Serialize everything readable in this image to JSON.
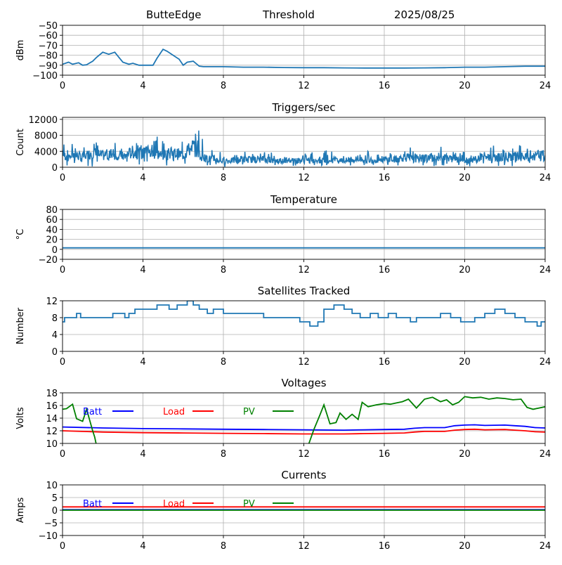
{
  "header": {
    "station": "ButteEdge",
    "trigger": "Threshold",
    "date": "2025/08/25"
  },
  "colors": {
    "series": "#1f77b4",
    "batt": "#0000ff",
    "load": "#ff0000",
    "pv": "#008000",
    "grid": "#b0b0b0"
  },
  "chart_data": [
    {
      "type": "line",
      "title": "",
      "xlabel": "",
      "ylabel": "dBm",
      "xlim": [
        0,
        24
      ],
      "ylim": [
        -100,
        -50
      ],
      "xticks": [
        0,
        4,
        8,
        12,
        16,
        20,
        24
      ],
      "yticks": [
        -50,
        -60,
        -70,
        -80,
        -90,
        -100
      ],
      "grid": true,
      "series": [
        {
          "x": [
            0,
            0.3,
            0.5,
            0.8,
            1.0,
            1.2,
            1.5,
            1.7,
            2.0,
            2.3,
            2.6,
            2.8,
            3.0,
            3.3,
            3.5,
            3.8,
            4.0,
            4.5,
            4.7,
            5.0,
            5.2,
            5.5,
            5.8,
            6.0,
            6.2,
            6.5,
            6.8,
            7.0,
            8,
            9,
            10,
            11,
            12,
            13,
            14,
            15,
            16,
            17,
            18,
            19,
            20,
            21,
            22,
            23,
            24
          ],
          "y": [
            -89,
            -87,
            -89,
            -87.5,
            -90,
            -89.5,
            -86,
            -82,
            -77,
            -79,
            -77,
            -82,
            -87,
            -89,
            -88,
            -90,
            -90,
            -90,
            -83,
            -74,
            -76,
            -80,
            -84,
            -90,
            -87,
            -86,
            -91,
            -91.5,
            -91.5,
            -92,
            -92,
            -92.3,
            -92.5,
            -92.5,
            -92.7,
            -92.8,
            -92.8,
            -92.8,
            -92.7,
            -92.5,
            -92,
            -92,
            -91.5,
            -91,
            -91
          ]
        }
      ]
    },
    {
      "type": "line",
      "title": "Triggers/sec",
      "xlabel": "",
      "ylabel": "Count",
      "xlim": [
        0,
        24
      ],
      "ylim": [
        0,
        12500
      ],
      "xticks": [
        0,
        4,
        8,
        12,
        16,
        20,
        24
      ],
      "yticks": [
        0,
        4000,
        8000,
        12000
      ],
      "grid": true,
      "series": [
        {
          "x": [
            0,
            0.5,
            1,
            1.5,
            2,
            2.5,
            3,
            3.5,
            4,
            4.5,
            5,
            5.5,
            6,
            6.5,
            7,
            7.5,
            8,
            8.5,
            9,
            9.5,
            10,
            10.5,
            11,
            11.5,
            12,
            12.5,
            13,
            13.5,
            14,
            14.5,
            15,
            15.5,
            16,
            16.5,
            17,
            17.5,
            18,
            18.5,
            19,
            19.5,
            20,
            20.5,
            21,
            21.5,
            22,
            22.5,
            23,
            23.5,
            24
          ],
          "y": [
            2800,
            3200,
            2500,
            3600,
            2900,
            3400,
            2700,
            3800,
            3300,
            3600,
            3000,
            3500,
            3100,
            5200,
            2300,
            2000,
            1500,
            1700,
            2000,
            1900,
            2100,
            1600,
            1800,
            1600,
            1700,
            1500,
            1700,
            1800,
            1600,
            1900,
            2100,
            1800,
            2000,
            1900,
            2500,
            2200,
            2300,
            2600,
            2400,
            2100,
            1800,
            2000,
            2700,
            2300,
            2600,
            2800,
            2400,
            2900,
            3000
          ],
          "range": [
            [
              300,
              6000
            ],
            [
              500,
              6200
            ],
            [
              200,
              5000
            ],
            [
              600,
              6500
            ],
            [
              400,
              5500
            ],
            [
              600,
              6800
            ],
            [
              300,
              5200
            ],
            [
              700,
              7600
            ],
            [
              500,
              7000
            ],
            [
              600,
              8400
            ],
            [
              400,
              6000
            ],
            [
              600,
              7000
            ],
            [
              400,
              6500
            ],
            [
              700,
              9800
            ],
            [
              200,
              4800
            ],
            [
              300,
              4200
            ],
            [
              100,
              2800
            ],
            [
              300,
              3200
            ],
            [
              300,
              4000
            ],
            [
              300,
              3500
            ],
            [
              300,
              4200
            ],
            [
              200,
              3000
            ],
            [
              300,
              3500
            ],
            [
              200,
              3200
            ],
            [
              200,
              4000
            ],
            [
              200,
              2800
            ],
            [
              300,
              4500
            ],
            [
              300,
              3500
            ],
            [
              200,
              3400
            ],
            [
              300,
              3800
            ],
            [
              300,
              4500
            ],
            [
              300,
              3500
            ],
            [
              300,
              4500
            ],
            [
              300,
              3600
            ],
            [
              400,
              5200
            ],
            [
              300,
              4200
            ],
            [
              300,
              4500
            ],
            [
              400,
              5200
            ],
            [
              300,
              4800
            ],
            [
              300,
              4000
            ],
            [
              200,
              3500
            ],
            [
              300,
              4000
            ],
            [
              300,
              5500
            ],
            [
              300,
              4600
            ],
            [
              300,
              5200
            ],
            [
              400,
              5600
            ],
            [
              300,
              4800
            ],
            [
              400,
              5800
            ],
            [
              400,
              5600
            ]
          ]
        }
      ]
    },
    {
      "type": "line",
      "title": "Temperature",
      "xlabel": "",
      "ylabel": "°C",
      "xlim": [
        0,
        24
      ],
      "ylim": [
        -20,
        80
      ],
      "xticks": [
        0,
        4,
        8,
        12,
        16,
        20,
        24
      ],
      "yticks": [
        -20,
        0,
        20,
        40,
        60,
        80
      ],
      "grid": true,
      "series": [
        {
          "x": [
            0,
            24
          ],
          "y": [
            3,
            3
          ]
        }
      ]
    },
    {
      "type": "line",
      "title": "Satellites Tracked",
      "xlabel": "",
      "ylabel": "Number",
      "xlim": [
        0,
        24
      ],
      "ylim": [
        0,
        12
      ],
      "xticks": [
        0,
        4,
        8,
        12,
        16,
        20,
        24
      ],
      "yticks": [
        0,
        4,
        8,
        12
      ],
      "grid": true,
      "series": [
        {
          "step": true,
          "x": [
            0,
            0.1,
            0.7,
            0.9,
            1.2,
            2.5,
            3.1,
            3.3,
            3.6,
            4.0,
            4.7,
            5.3,
            5.7,
            6.2,
            6.5,
            6.8,
            7.2,
            7.5,
            8.0,
            9.0,
            10.0,
            11.0,
            11.8,
            12.3,
            12.7,
            13.0,
            13.5,
            14.0,
            14.4,
            14.8,
            15.3,
            15.7,
            16.2,
            16.6,
            17.3,
            17.6,
            18.1,
            18.8,
            19.3,
            19.8,
            20.5,
            21.0,
            21.5,
            22.0,
            22.5,
            23.0,
            23.6,
            23.8,
            24
          ],
          "y": [
            7,
            8,
            9,
            8,
            8,
            9,
            8,
            9,
            10,
            10,
            11,
            10,
            11,
            12,
            11,
            10,
            9,
            10,
            9,
            9,
            8,
            8,
            7,
            6,
            7,
            10,
            11,
            10,
            9,
            8,
            9,
            8,
            9,
            8,
            7,
            8,
            8,
            9,
            8,
            7,
            8,
            9,
            10,
            9,
            8,
            7,
            6,
            7,
            7
          ]
        }
      ]
    },
    {
      "type": "line",
      "title": "Voltages",
      "xlabel": "",
      "ylabel": "Volts",
      "xlim": [
        0,
        24
      ],
      "ylim": [
        10,
        18
      ],
      "xticks": [
        0,
        4,
        8,
        12,
        16,
        20,
        24
      ],
      "yticks": [
        10,
        12,
        14,
        16,
        18
      ],
      "grid": true,
      "legend": "top-left",
      "series": [
        {
          "name": "Batt",
          "x": [
            0,
            2,
            4,
            6,
            8,
            10,
            12,
            14,
            15,
            16,
            17,
            17.5,
            18,
            19,
            19.5,
            20,
            20.5,
            21,
            22,
            22.5,
            23,
            23.5,
            24
          ],
          "y": [
            12.6,
            12.45,
            12.35,
            12.3,
            12.25,
            12.2,
            12.15,
            12.1,
            12.15,
            12.2,
            12.25,
            12.4,
            12.5,
            12.5,
            12.8,
            12.9,
            12.95,
            12.85,
            12.9,
            12.8,
            12.7,
            12.5,
            12.45
          ]
        },
        {
          "name": "Load",
          "x": [
            0,
            2,
            4,
            6,
            8,
            10,
            12,
            14,
            15,
            16,
            17,
            17.5,
            18,
            19,
            19.5,
            20,
            20.5,
            21,
            22,
            22.5,
            23,
            23.5,
            24
          ],
          "y": [
            12.0,
            11.8,
            11.7,
            11.65,
            11.6,
            11.55,
            11.5,
            11.5,
            11.55,
            11.6,
            11.65,
            11.8,
            11.9,
            11.9,
            12.1,
            12.2,
            12.25,
            12.15,
            12.2,
            12.1,
            12.0,
            11.85,
            11.8
          ]
        },
        {
          "name": "PV",
          "x": [
            0,
            0.2,
            0.5,
            0.7,
            1.0,
            1.2,
            1.5,
            1.6,
            1.7,
            12.2,
            12.5,
            12.8,
            13.0,
            13.3,
            13.6,
            13.8,
            14.1,
            14.4,
            14.7,
            14.9,
            15.2,
            15.6,
            16.0,
            16.3,
            16.6,
            16.9,
            17.2,
            17.6,
            18.0,
            18.4,
            18.8,
            19.1,
            19.4,
            19.7,
            20.0,
            20.4,
            20.8,
            21.2,
            21.6,
            22.0,
            22.4,
            22.8,
            23.1,
            23.4,
            23.7,
            24
          ],
          "y": [
            15.4,
            15.5,
            16.2,
            13.9,
            13.5,
            15.4,
            12.0,
            11.0,
            9.5,
            9.5,
            12.2,
            14.5,
            16.1,
            13.1,
            13.3,
            14.8,
            13.8,
            14.6,
            13.8,
            16.5,
            15.8,
            16.1,
            16.3,
            16.2,
            16.4,
            16.6,
            17.0,
            15.6,
            17.0,
            17.3,
            16.6,
            16.9,
            16.1,
            16.5,
            17.4,
            17.2,
            17.3,
            17.0,
            17.2,
            17.1,
            16.9,
            17.0,
            15.7,
            15.4,
            15.6,
            15.8
          ]
        }
      ]
    },
    {
      "type": "line",
      "title": "Currents",
      "xlabel": "",
      "ylabel": "Amps",
      "xlim": [
        0,
        24
      ],
      "ylim": [
        -10,
        10
      ],
      "xticks": [
        0,
        4,
        8,
        12,
        16,
        20,
        24
      ],
      "yticks": [
        -10,
        -5,
        0,
        5,
        10
      ],
      "grid": true,
      "legend": "top-left",
      "series": [
        {
          "name": "Batt",
          "x": [
            0,
            24
          ],
          "y": [
            0.2,
            0.2
          ]
        },
        {
          "name": "Load",
          "x": [
            0,
            24
          ],
          "y": [
            1.3,
            1.3
          ]
        },
        {
          "name": "PV",
          "x": [
            0,
            24
          ],
          "y": [
            0.0,
            0.0
          ]
        }
      ]
    }
  ]
}
